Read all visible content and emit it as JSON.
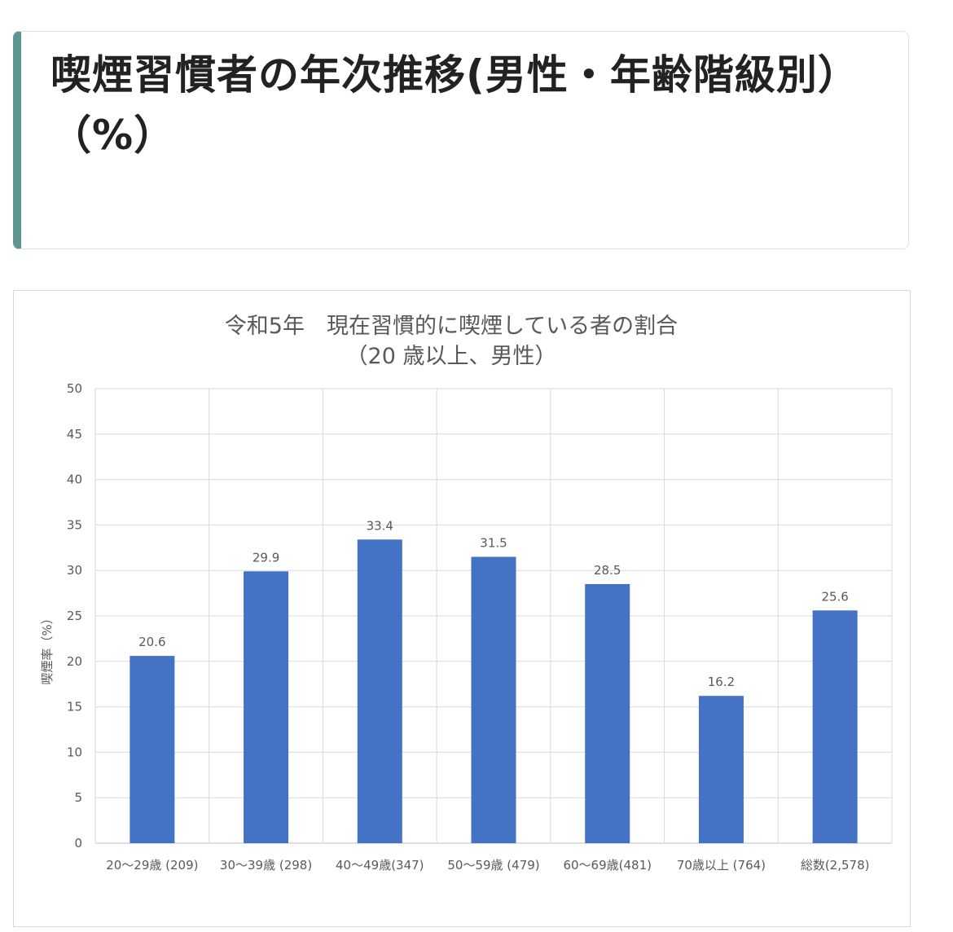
{
  "page": {
    "heading": "喫煙習慣者の年次推移(男性・年齢階級別）（%）"
  },
  "chart_data": {
    "type": "bar",
    "title": "令和5年　現在習慣的に喫煙している者の割合",
    "subtitle": "（20 歳以上、男性）",
    "ylabel": "喫煙率（%）",
    "xlabel": "",
    "ylim": [
      0,
      50
    ],
    "yticks": [
      0,
      5,
      10,
      15,
      20,
      25,
      30,
      35,
      40,
      45,
      50
    ],
    "grid": true,
    "categories": [
      "20～29歳 (209)",
      "30～39歳 (298)",
      "40～49歳(347)",
      "50～59歳 (479)",
      "60～69歳(481)",
      "70歳以上 (764)",
      "総数(2,578)"
    ],
    "values": [
      20.6,
      29.9,
      33.4,
      31.5,
      28.5,
      16.2,
      25.6
    ],
    "bar_color": "#4472c4"
  }
}
